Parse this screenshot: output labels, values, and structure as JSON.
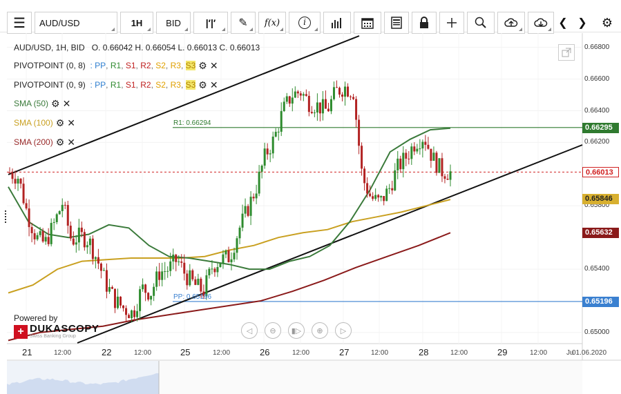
{
  "toolbar": {
    "menu_icon": "hamburger-icon",
    "symbol": "AUD/USD",
    "timeframe": "1H",
    "price_type": "BID",
    "fx_label": "f(x)",
    "info_label": "i"
  },
  "header": {
    "ohlc_line": "AUD/USD, 1H, BID   O. 0.66042 H. 0.66054 L. 0.66013 C. 0.66013"
  },
  "indicators": [
    {
      "name": "PIVOTPOINT (0, 8)",
      "color": "#222222",
      "levels": [
        {
          "label": "PP",
          "color": "#2f7fd0"
        },
        {
          "label": "R1",
          "color": "#2f8a2f"
        },
        {
          "label": "S1",
          "color": "#c02020"
        },
        {
          "label": "R2",
          "color": "#c02020"
        },
        {
          "label": "S2",
          "color": "#e0a000"
        },
        {
          "label": "R3",
          "color": "#e0a000"
        },
        {
          "label": "S3",
          "color": "#e0c000"
        }
      ]
    },
    {
      "name": "PIVOTPOINT (0, 9)",
      "color": "#222222",
      "levels": [
        {
          "label": "PP",
          "color": "#2f7fd0"
        },
        {
          "label": "R1",
          "color": "#2f8a2f"
        },
        {
          "label": "S1",
          "color": "#c02020"
        },
        {
          "label": "R2",
          "color": "#c02020"
        },
        {
          "label": "S2",
          "color": "#e0a000"
        },
        {
          "label": "R3",
          "color": "#e0a000"
        },
        {
          "label": "S3",
          "color": "#e0c000"
        }
      ]
    },
    {
      "name": "SMA (50)",
      "color": "#3a7a3a"
    },
    {
      "name": "SMA (100)",
      "color": "#c9a020"
    },
    {
      "name": "SMA (200)",
      "color": "#9a2a2a"
    }
  ],
  "chart_data": {
    "type": "candlestick",
    "ylim": [
      0.6493,
      0.6689
    ],
    "y_ticks": [
      "0.66800",
      "0.66600",
      "0.66400",
      "0.66200",
      "0.65800",
      "0.65400",
      "0.65000"
    ],
    "x_ticks": [
      {
        "label": "21",
        "major": true
      },
      {
        "label": "12:00",
        "major": false
      },
      {
        "label": "22",
        "major": true
      },
      {
        "label": "12:00",
        "major": false
      },
      {
        "label": "25",
        "major": true
      },
      {
        "label": "12:00",
        "major": false
      },
      {
        "label": "26",
        "major": true
      },
      {
        "label": "12:00",
        "major": false
      },
      {
        "label": "27",
        "major": true
      },
      {
        "label": "12:00",
        "major": false
      },
      {
        "label": "28",
        "major": true
      },
      {
        "label": "12:00",
        "major": false
      },
      {
        "label": "29",
        "major": true
      },
      {
        "label": "12:00",
        "major": false
      },
      {
        "label": "Ju",
        "major": false
      },
      {
        "label": "01.06.2020",
        "major": false
      }
    ],
    "close_path": [
      0.6601,
      0.6598,
      0.6575,
      0.656,
      0.6556,
      0.6568,
      0.6582,
      0.6558,
      0.6561,
      0.6558,
      0.6545,
      0.653,
      0.652,
      0.6515,
      0.6512,
      0.6528,
      0.6525,
      0.6538,
      0.654,
      0.6546,
      0.6536,
      0.653,
      0.6526,
      0.6542,
      0.6546,
      0.6548,
      0.6565,
      0.6578,
      0.6592,
      0.6612,
      0.6622,
      0.664,
      0.665,
      0.6652,
      0.6645,
      0.6643,
      0.664,
      0.6652,
      0.6655,
      0.6652,
      0.6598,
      0.6585,
      0.6582,
      0.659,
      0.6604,
      0.6611,
      0.662,
      0.6624,
      0.661,
      0.6602,
      0.6601
    ],
    "sma50": [
      0.6592,
      0.657,
      0.6562,
      0.656,
      0.6562,
      0.6568,
      0.6566,
      0.6555,
      0.6548,
      0.6547,
      0.6545,
      0.6543,
      0.654,
      0.654,
      0.6545,
      0.6548,
      0.6555,
      0.657,
      0.659,
      0.6614,
      0.6622,
      0.6628,
      0.6629
    ],
    "sma100": [
      0.6525,
      0.653,
      0.654,
      0.6545,
      0.6546,
      0.6547,
      0.6547,
      0.6547,
      0.6548,
      0.6552,
      0.6555,
      0.656,
      0.6563,
      0.6565,
      0.657,
      0.6573,
      0.6576,
      0.658,
      0.6584
    ],
    "sma200": [
      0.6495,
      0.65,
      0.6502,
      0.6504,
      0.6508,
      0.6511,
      0.6514,
      0.6517,
      0.652,
      0.6526,
      0.6533,
      0.6541,
      0.6548,
      0.6555,
      0.6563
    ],
    "horizontal_lines": [
      {
        "label": "R1: 0.66294",
        "value": 0.66294,
        "color": "#2f7a2f"
      },
      {
        "label": "PP: 0.65196",
        "value": 0.65196,
        "color": "#3a80d0"
      }
    ],
    "price_tags": [
      {
        "label": "0.66295",
        "value": 0.66295,
        "bg": "#2f7a2f",
        "fg": "#ffffff"
      },
      {
        "label": "0.66013",
        "value": 0.66013,
        "bg": "#ffffff",
        "fg": "#d02020"
      },
      {
        "label": "0.65846",
        "value": 0.65846,
        "bg": "#d8b030",
        "fg": "#222222"
      },
      {
        "label": "0.65632",
        "value": 0.65632,
        "bg": "#8a1a1a",
        "fg": "#ffffff"
      },
      {
        "label": "0.65196",
        "value": 0.65196,
        "bg": "#3a80d0",
        "fg": "#ffffff"
      }
    ],
    "current_price_line": {
      "value": 0.66013,
      "color": "#d02020"
    }
  },
  "branding": {
    "powered_by": "Powered by",
    "name": "DUKASCOPY",
    "subtitle": "Swiss Banking Group",
    "logo_color": "#d01020"
  }
}
